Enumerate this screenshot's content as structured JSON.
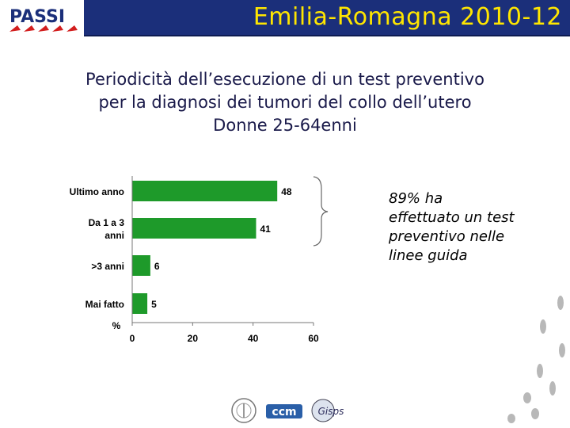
{
  "header": {
    "title": "Emilia-Romagna 2010-12",
    "logo_text": "PASSI"
  },
  "subtitle": {
    "line1": "Periodicità dell’esecuzione di un test preventivo",
    "line2": "per la diagnosi dei tumori del collo dell’utero",
    "line3": "Donne 25-64enni"
  },
  "note": {
    "line1": "89% ha",
    "line2": "effettuato un test",
    "line3": "preventivo nelle",
    "line4": "linee guida"
  },
  "partners": {
    "logo2_text": "ccm",
    "logo3_text": "Gisps"
  },
  "colors": {
    "bar": "#1e9a2a",
    "title_bg": "#1b2f7a",
    "title_text": "#ffe600"
  },
  "chart_data": {
    "type": "bar",
    "orientation": "horizontal",
    "categories": [
      [
        "Ultimo anno"
      ],
      [
        "Da 1 a 3",
        "anni"
      ],
      [
        ">3 anni"
      ],
      [
        "Mai fatto"
      ]
    ],
    "values": [
      48,
      41,
      6,
      5
    ],
    "xlabel": "%",
    "xlim": [
      0,
      60
    ],
    "xticks": [
      0,
      20,
      40,
      60
    ],
    "grid": false,
    "legend": "none"
  }
}
